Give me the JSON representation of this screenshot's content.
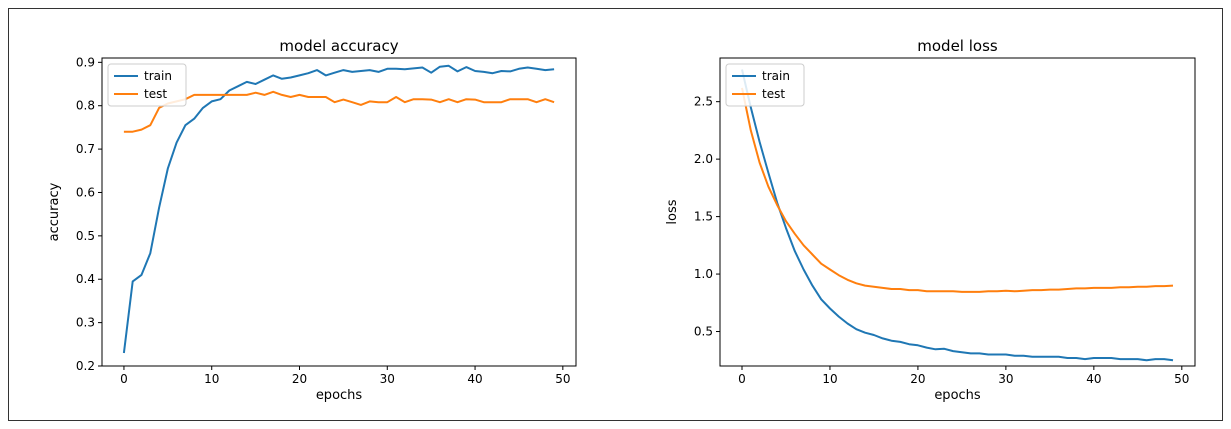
{
  "chart_data": [
    {
      "type": "line",
      "title": "model accuracy",
      "xlabel": "epochs",
      "ylabel": "accuracy",
      "xlim": [
        -2.5,
        51.5
      ],
      "ylim": [
        0.2,
        0.91
      ],
      "xticks": [
        0,
        10,
        20,
        30,
        40,
        50
      ],
      "yticks": [
        0.2,
        0.3,
        0.4,
        0.5,
        0.6,
        0.7,
        0.8,
        0.9
      ],
      "ytick_decimals": 1,
      "legend": "upper-left",
      "x": [
        0,
        1,
        2,
        3,
        4,
        5,
        6,
        7,
        8,
        9,
        10,
        11,
        12,
        13,
        14,
        15,
        16,
        17,
        18,
        19,
        20,
        21,
        22,
        23,
        24,
        25,
        26,
        27,
        28,
        29,
        30,
        31,
        32,
        33,
        34,
        35,
        36,
        37,
        38,
        39,
        40,
        41,
        42,
        43,
        44,
        45,
        46,
        47,
        48,
        49
      ],
      "series": [
        {
          "name": "train",
          "color": "#1f77b4",
          "values": [
            0.23,
            0.395,
            0.41,
            0.46,
            0.565,
            0.655,
            0.715,
            0.755,
            0.77,
            0.795,
            0.81,
            0.815,
            0.835,
            0.845,
            0.855,
            0.85,
            0.86,
            0.87,
            0.862,
            0.865,
            0.87,
            0.875,
            0.882,
            0.87,
            0.876,
            0.882,
            0.878,
            0.88,
            0.882,
            0.878,
            0.885,
            0.885,
            0.884,
            0.886,
            0.888,
            0.876,
            0.89,
            0.892,
            0.879,
            0.889,
            0.88,
            0.878,
            0.875,
            0.88,
            0.879,
            0.885,
            0.888,
            0.885,
            0.882,
            0.884
          ]
        },
        {
          "name": "test",
          "color": "#ff7f0e",
          "values": [
            0.74,
            0.74,
            0.745,
            0.755,
            0.795,
            0.805,
            0.81,
            0.815,
            0.825,
            0.825,
            0.825,
            0.825,
            0.825,
            0.825,
            0.825,
            0.83,
            0.825,
            0.832,
            0.825,
            0.82,
            0.825,
            0.82,
            0.82,
            0.82,
            0.808,
            0.814,
            0.808,
            0.802,
            0.81,
            0.808,
            0.808,
            0.82,
            0.808,
            0.815,
            0.815,
            0.814,
            0.808,
            0.815,
            0.808,
            0.815,
            0.814,
            0.808,
            0.808,
            0.808,
            0.815,
            0.815,
            0.815,
            0.808,
            0.815,
            0.808
          ]
        }
      ]
    },
    {
      "type": "line",
      "title": "model loss",
      "xlabel": "epochs",
      "ylabel": "loss",
      "xlim": [
        -2.5,
        51.5
      ],
      "ylim": [
        0.2,
        2.88
      ],
      "xticks": [
        0,
        10,
        20,
        30,
        40,
        50
      ],
      "yticks": [
        0.5,
        1.0,
        1.5,
        2.0,
        2.5
      ],
      "ytick_decimals": 1,
      "legend": "upper-left",
      "x": [
        0,
        1,
        2,
        3,
        4,
        5,
        6,
        7,
        8,
        9,
        10,
        11,
        12,
        13,
        14,
        15,
        16,
        17,
        18,
        19,
        20,
        21,
        22,
        23,
        24,
        25,
        26,
        27,
        28,
        29,
        30,
        31,
        32,
        33,
        34,
        35,
        36,
        37,
        38,
        39,
        40,
        41,
        42,
        43,
        44,
        45,
        46,
        47,
        48,
        49
      ],
      "series": [
        {
          "name": "train",
          "color": "#1f77b4",
          "values": [
            2.78,
            2.45,
            2.15,
            1.88,
            1.62,
            1.4,
            1.2,
            1.04,
            0.9,
            0.78,
            0.7,
            0.63,
            0.57,
            0.52,
            0.49,
            0.47,
            0.44,
            0.42,
            0.41,
            0.39,
            0.38,
            0.36,
            0.345,
            0.35,
            0.33,
            0.32,
            0.31,
            0.31,
            0.3,
            0.3,
            0.3,
            0.29,
            0.29,
            0.28,
            0.28,
            0.28,
            0.28,
            0.27,
            0.27,
            0.26,
            0.27,
            0.27,
            0.27,
            0.26,
            0.26,
            0.26,
            0.25,
            0.26,
            0.26,
            0.25
          ]
        },
        {
          "name": "test",
          "color": "#ff7f0e",
          "values": [
            2.62,
            2.25,
            1.97,
            1.76,
            1.6,
            1.46,
            1.35,
            1.25,
            1.17,
            1.09,
            1.04,
            0.99,
            0.95,
            0.92,
            0.9,
            0.89,
            0.88,
            0.87,
            0.87,
            0.86,
            0.86,
            0.85,
            0.85,
            0.85,
            0.85,
            0.845,
            0.845,
            0.845,
            0.85,
            0.85,
            0.855,
            0.85,
            0.855,
            0.86,
            0.86,
            0.865,
            0.865,
            0.87,
            0.875,
            0.875,
            0.88,
            0.88,
            0.88,
            0.885,
            0.885,
            0.89,
            0.89,
            0.895,
            0.895,
            0.9
          ]
        }
      ]
    }
  ]
}
